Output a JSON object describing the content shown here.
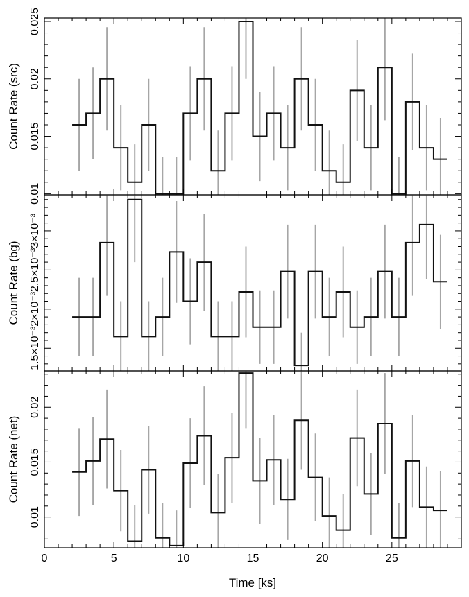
{
  "chart_data": {
    "type": "line",
    "xlabel": "Time [ks]",
    "xlim": [
      0,
      30
    ],
    "x_ticks": [
      "0",
      "5",
      "10",
      "15",
      "20",
      "25"
    ],
    "bins": {
      "start": 2.0,
      "width": 1.0,
      "count": 27
    },
    "panels": [
      {
        "ylabel": "Count Rate (src)",
        "ylim": [
          0.0099,
          0.0253
        ],
        "y_ticks": [
          {
            "value": 0.01,
            "label": "0.01"
          },
          {
            "value": 0.015,
            "label": "0.015"
          },
          {
            "value": 0.02,
            "label": "0.02"
          },
          {
            "value": 0.025,
            "label": "0.025"
          }
        ],
        "values": [
          0.016,
          0.017,
          0.02,
          0.014,
          0.011,
          0.016,
          0.01,
          0.01,
          0.017,
          0.02,
          0.012,
          0.017,
          0.025,
          0.015,
          0.017,
          0.014,
          0.02,
          0.016,
          0.012,
          0.011,
          0.019,
          0.014,
          0.021,
          0.01,
          0.018,
          0.014,
          0.013
        ],
        "errors": [
          0.004,
          0.004,
          0.0045,
          0.0037,
          0.0033,
          0.004,
          0.0032,
          0.0032,
          0.0041,
          0.0045,
          0.0035,
          0.0041,
          0.005,
          0.0039,
          0.0041,
          0.0037,
          0.0045,
          0.004,
          0.0035,
          0.0033,
          0.0044,
          0.0037,
          0.0046,
          0.0032,
          0.0042,
          0.0037,
          0.0036
        ]
      },
      {
        "ylabel": "Count Rate (bg)",
        "ylim": [
          0.00121,
          0.00346
        ],
        "y_ticks": [
          {
            "value": 0.0015,
            "label": "1.5×10⁻³"
          },
          {
            "value": 0.002,
            "label": "2×10⁻³"
          },
          {
            "value": 0.0025,
            "label": "2.5×10⁻³"
          },
          {
            "value": 0.003,
            "label": "3×10⁻³"
          }
        ],
        "values": [
          0.0019,
          0.0019,
          0.00285,
          0.00165,
          0.0034,
          0.00165,
          0.0019,
          0.00273,
          0.0021,
          0.0026,
          0.00165,
          0.00165,
          0.00222,
          0.00177,
          0.00177,
          0.00248,
          0.00128,
          0.00248,
          0.0019,
          0.00222,
          0.00177,
          0.0019,
          0.00248,
          0.0019,
          0.00285,
          0.00308,
          0.00235
        ],
        "errors": [
          0.0005,
          0.0005,
          0.00068,
          0.00045,
          0.0008,
          0.00045,
          0.0005,
          0.00065,
          0.00055,
          0.00062,
          0.00045,
          0.00045,
          0.00058,
          0.00047,
          0.00047,
          0.0006,
          0.00042,
          0.0006,
          0.0005,
          0.00058,
          0.00047,
          0.0005,
          0.0006,
          0.0005,
          0.00068,
          0.0007,
          0.0006
        ]
      },
      {
        "ylabel": "Count Rate (net)",
        "ylim": [
          0.0072,
          0.0233
        ],
        "y_ticks": [
          {
            "value": 0.01,
            "label": "0.01"
          },
          {
            "value": 0.015,
            "label": "0.015"
          },
          {
            "value": 0.02,
            "label": "0.02"
          }
        ],
        "values": [
          0.0141,
          0.0151,
          0.0171,
          0.0124,
          0.0078,
          0.0143,
          0.0081,
          0.0074,
          0.0149,
          0.0174,
          0.0104,
          0.0154,
          0.0231,
          0.0133,
          0.0152,
          0.0116,
          0.0188,
          0.0136,
          0.0101,
          0.0088,
          0.0172,
          0.0121,
          0.0185,
          0.0081,
          0.0151,
          0.0109,
          0.0106
        ],
        "errors": [
          0.004,
          0.004,
          0.0045,
          0.0037,
          0.0033,
          0.004,
          0.0032,
          0.0032,
          0.0041,
          0.0045,
          0.0035,
          0.0041,
          0.005,
          0.0039,
          0.0041,
          0.0037,
          0.0045,
          0.004,
          0.0035,
          0.0033,
          0.0044,
          0.0037,
          0.0046,
          0.0032,
          0.0042,
          0.0037,
          0.0036
        ]
      }
    ]
  }
}
